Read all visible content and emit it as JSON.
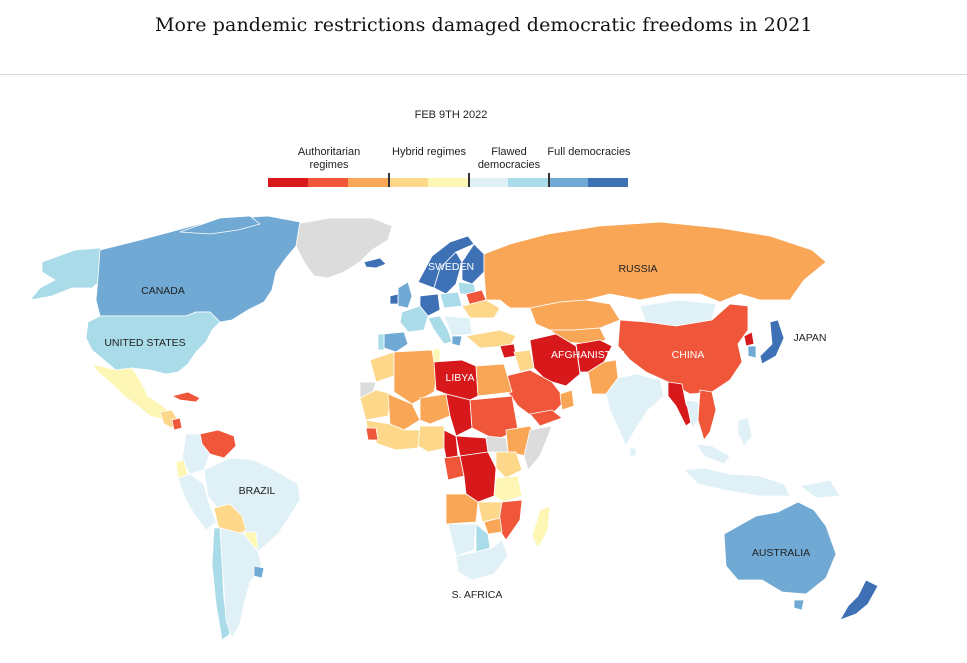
{
  "header": {
    "title": "More pandemic restrictions damaged democratic freedoms in 2021"
  },
  "map": {
    "date": "FEB 9TH 2022",
    "legend": [
      {
        "label": "Authoritarian regimes",
        "colors": [
          "#d7191c",
          "#f0563a",
          "#f9a656"
        ]
      },
      {
        "label": "Hybrid regimes",
        "colors": [
          "#fdd88a",
          "#fef6b5"
        ]
      },
      {
        "label": "Flawed democracies",
        "colors": [
          "#dff0f7",
          "#a9dbe8"
        ]
      },
      {
        "label": "Full democracies",
        "colors": [
          "#6fa9d4",
          "#3e70b5"
        ]
      }
    ],
    "countries": {
      "canada": {
        "label": "CANADA",
        "category": "Full democracies"
      },
      "united_states": {
        "label": "UNITED STATES",
        "category": "Flawed democracies"
      },
      "brazil": {
        "label": "BRAZIL",
        "category": "Flawed democracies"
      },
      "libya": {
        "label": "LIBYA",
        "category": "Authoritarian regimes"
      },
      "sweden": {
        "label": "SWEDEN",
        "category": "Full democracies"
      },
      "russia": {
        "label": "RUSSIA",
        "category": "Authoritarian regimes"
      },
      "afghanistan": {
        "label": "AFGHANISTAN",
        "category": "Authoritarian regimes"
      },
      "china": {
        "label": "CHINA",
        "category": "Authoritarian regimes"
      },
      "japan": {
        "label": "JAPAN",
        "category": "Full democracies"
      },
      "australia": {
        "label": "AUSTRALIA",
        "category": "Full democracies"
      },
      "south_africa": {
        "label": "S. AFRICA",
        "category": "Flawed democracies"
      }
    },
    "colors": {
      "no_data": "#dcdcdc",
      "border": "#ffffff"
    }
  }
}
